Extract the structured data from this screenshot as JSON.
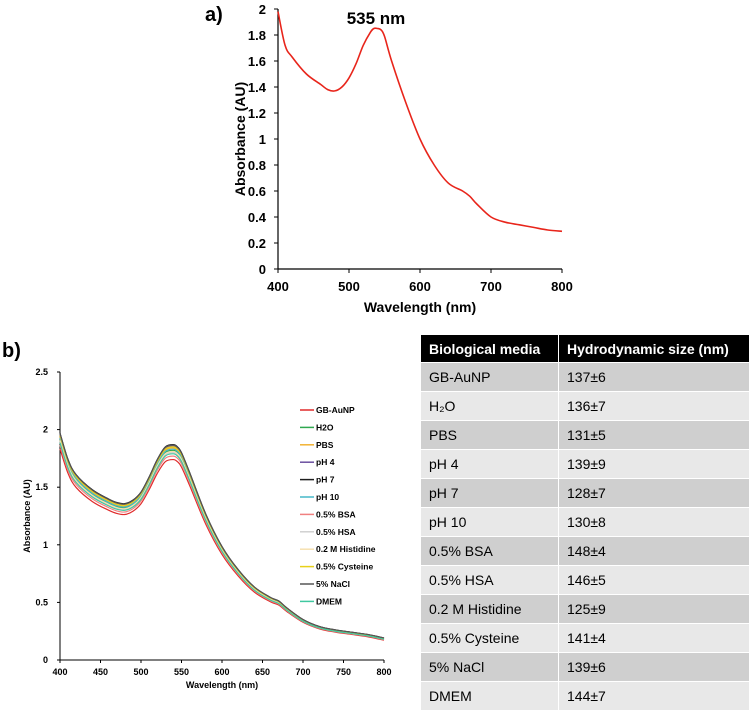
{
  "panel_a_label": "a)",
  "panel_b_label": "b)",
  "chart_data": [
    {
      "type": "line",
      "id": "a",
      "title": "",
      "xlabel": "Wavelength (nm)",
      "ylabel": "Absorbance (AU)",
      "xlim": [
        400,
        800
      ],
      "ylim": [
        0,
        2
      ],
      "xticks": [
        "400",
        "500",
        "600",
        "700",
        "800"
      ],
      "yticks": [
        "0",
        "0.2",
        "0.4",
        "0.6",
        "0.8",
        "1",
        "1.2",
        "1.4",
        "1.6",
        "1.8",
        "2"
      ],
      "annotation": "535 nm",
      "series": [
        {
          "name": "GB-AuNP",
          "color": "#e8251b",
          "x": [
            400,
            410,
            420,
            440,
            460,
            470,
            480,
            490,
            500,
            510,
            520,
            530,
            535,
            540,
            545,
            550,
            560,
            580,
            600,
            620,
            640,
            660,
            670,
            680,
            700,
            720,
            740,
            760,
            780,
            800
          ],
          "y": [
            1.98,
            1.72,
            1.63,
            1.5,
            1.42,
            1.38,
            1.37,
            1.4,
            1.47,
            1.58,
            1.72,
            1.82,
            1.85,
            1.85,
            1.84,
            1.79,
            1.6,
            1.28,
            1.0,
            0.8,
            0.66,
            0.6,
            0.56,
            0.5,
            0.4,
            0.36,
            0.34,
            0.32,
            0.3,
            0.29
          ]
        }
      ]
    },
    {
      "type": "line",
      "id": "b",
      "title": "",
      "xlabel": "Wavelength (nm)",
      "ylabel": "Absorbance (AU)",
      "xlim": [
        400,
        800
      ],
      "ylim": [
        0,
        2.5
      ],
      "xticks": [
        "400",
        "450",
        "500",
        "550",
        "600",
        "650",
        "700",
        "750",
        "800"
      ],
      "yticks": [
        "0",
        "0.5",
        "1",
        "1.5",
        "2",
        "2.5"
      ],
      "x": [
        400,
        410,
        420,
        440,
        460,
        470,
        480,
        490,
        500,
        510,
        520,
        530,
        540,
        545,
        550,
        560,
        580,
        600,
        620,
        640,
        660,
        670,
        680,
        700,
        720,
        740,
        760,
        780,
        800
      ],
      "base": [
        1.96,
        1.73,
        1.6,
        1.47,
        1.39,
        1.36,
        1.35,
        1.38,
        1.45,
        1.58,
        1.73,
        1.84,
        1.86,
        1.84,
        1.79,
        1.62,
        1.26,
        0.98,
        0.78,
        0.63,
        0.54,
        0.51,
        0.45,
        0.35,
        0.29,
        0.26,
        0.24,
        0.22,
        0.19
      ],
      "series": [
        {
          "name": "GB-AuNP",
          "color": "#e02b2b",
          "offset": -0.12
        },
        {
          "name": "H2O",
          "color": "#2fa84f",
          "offset": -0.04
        },
        {
          "name": "PBS",
          "color": "#f2b233",
          "offset": -0.02
        },
        {
          "name": "pH 4",
          "color": "#6a4fa0",
          "offset": 0.0
        },
        {
          "name": "pH 7",
          "color": "#1e1e1e",
          "offset": 0.01
        },
        {
          "name": "pH 10",
          "color": "#46b8c8",
          "offset": -0.03
        },
        {
          "name": "0.5% BSA",
          "color": "#f08080",
          "offset": -0.09
        },
        {
          "name": "0.5% HSA",
          "color": "#d0d0d0",
          "offset": -0.06
        },
        {
          "name": "0.2 M Histidine",
          "color": "#f5e0b0",
          "offset": -0.05
        },
        {
          "name": "0.5% Cysteine",
          "color": "#e8d11a",
          "offset": -0.01
        },
        {
          "name": "5% NaCl",
          "color": "#555555",
          "offset": 0.005
        },
        {
          "name": "DMEM",
          "color": "#40c8a0",
          "offset": -0.07
        }
      ]
    }
  ],
  "table": {
    "headers": [
      "Biological media",
      "Hydrodynamic size (nm)"
    ],
    "rows": [
      {
        "media": "GB-AuNP",
        "size": "137±6"
      },
      {
        "media": "H₂O",
        "size": "136±7"
      },
      {
        "media": "PBS",
        "size": "131±5"
      },
      {
        "media": "pH 4",
        "size": "139±9"
      },
      {
        "media": "pH 7",
        "size": "128±7"
      },
      {
        "media": "pH 10",
        "size": "130±8"
      },
      {
        "media": "0.5% BSA",
        "size": "148±4"
      },
      {
        "media": "0.5% HSA",
        "size": "146±5"
      },
      {
        "media": "0.2 M Histidine",
        "size": "125±9"
      },
      {
        "media": "0.5% Cysteine",
        "size": "141±4"
      },
      {
        "media": "5% NaCl",
        "size": "139±6"
      },
      {
        "media": "DMEM",
        "size": "144±7"
      }
    ]
  }
}
